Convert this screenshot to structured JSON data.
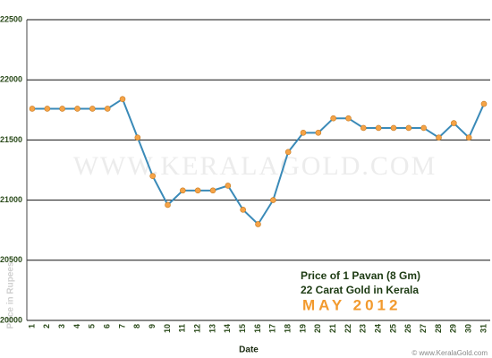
{
  "chart_data": {
    "type": "line",
    "watermark": "WWW.KERALAGOLD.COM",
    "xlabel": "Date",
    "ylabel": "Price in Rupees",
    "legend_lines": [
      "Price of 1 Pavan (8 Gm)",
      "22 Carat Gold in Kerala"
    ],
    "period": "MAY 2012",
    "footer": "© www.KeralaGold.com",
    "categories": [
      "1",
      "2",
      "3",
      "4",
      "5",
      "6",
      "7",
      "8",
      "9",
      "10",
      "11",
      "12",
      "13",
      "14",
      "15",
      "16",
      "17",
      "18",
      "19",
      "20",
      "21",
      "22",
      "23",
      "24",
      "25",
      "26",
      "27",
      "28",
      "29",
      "30",
      "31"
    ],
    "values": [
      21760,
      21760,
      21760,
      21760,
      21760,
      21760,
      21840,
      21520,
      21200,
      20960,
      21080,
      21080,
      21080,
      21120,
      20920,
      20800,
      21000,
      21400,
      21560,
      21560,
      21680,
      21680,
      21600,
      21600,
      21600,
      21600,
      21600,
      21520,
      21640,
      21520,
      21800
    ],
    "color": "#3a8ab8",
    "marker_color": "#f5a347",
    "ylim": [
      20000,
      22500
    ],
    "yticks": [
      20000,
      20500,
      21000,
      21500,
      22000,
      22500
    ],
    "grid": true
  }
}
